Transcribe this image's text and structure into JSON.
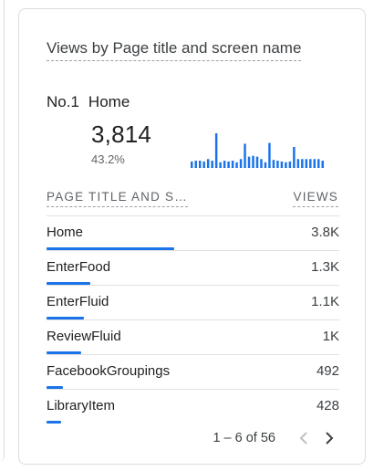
{
  "card": {
    "title": "Views by Page title and screen name",
    "top_item": {
      "rank_label": "No.1",
      "name": "Home",
      "value": "3,814",
      "percent": "43.2%"
    },
    "sparkline": {
      "color": "#1a73e8",
      "values": [
        8,
        9,
        9,
        8,
        11,
        9,
        43,
        7,
        9,
        8,
        9,
        7,
        11,
        30,
        14,
        15,
        14,
        11,
        7,
        31,
        10,
        9,
        8,
        7,
        8,
        26,
        11,
        11,
        11,
        11,
        11,
        11,
        9
      ]
    },
    "table": {
      "header_name": "PAGE TITLE AND S…",
      "header_value": "VIEWS",
      "bar_color": "#1a73e8",
      "rows": [
        {
          "name": "Home",
          "value": "3.8K",
          "share": 0.432
        },
        {
          "name": "EnterFood",
          "value": "1.3K",
          "share": 0.147
        },
        {
          "name": "EnterFluid",
          "value": "1.1K",
          "share": 0.125
        },
        {
          "name": "ReviewFluid",
          "value": "1K",
          "share": 0.118
        },
        {
          "name": "FacebookGroupings",
          "value": "492",
          "share": 0.056
        },
        {
          "name": "LibraryItem",
          "value": "428",
          "share": 0.048
        }
      ]
    },
    "pagination": {
      "range": "1 – 6 of 56",
      "prev_icon": "chevron-left-icon",
      "next_icon": "chevron-right-icon",
      "prev_enabled": false,
      "next_enabled": true
    }
  }
}
